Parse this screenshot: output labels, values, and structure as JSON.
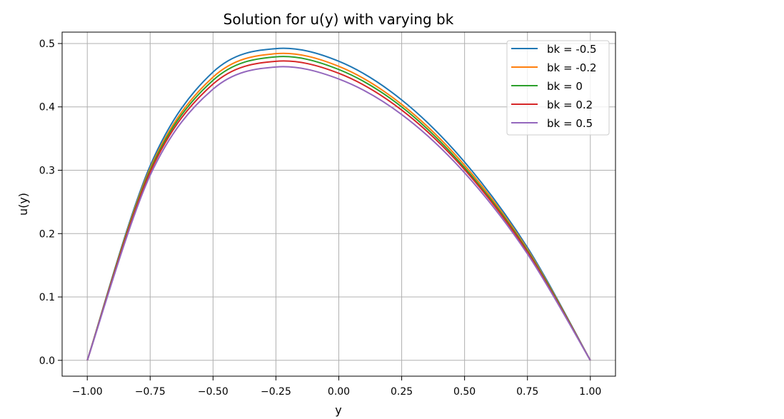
{
  "chart_data": {
    "type": "line",
    "title": "Solution for u(y) with varying bk",
    "xlabel": "y",
    "ylabel": "u(y)",
    "xlim": [
      -1.1,
      1.1
    ],
    "ylim": [
      -0.025,
      0.518
    ],
    "x_ticks": [
      -1.0,
      -0.75,
      -0.5,
      -0.25,
      0.0,
      0.25,
      0.5,
      0.75,
      1.0
    ],
    "x_tick_labels": [
      "−1.00",
      "−0.75",
      "−0.50",
      "−0.25",
      "0.00",
      "0.25",
      "0.50",
      "0.75",
      "1.00"
    ],
    "y_ticks": [
      0.0,
      0.1,
      0.2,
      0.3,
      0.4,
      0.5
    ],
    "y_tick_labels": [
      "0.0",
      "0.1",
      "0.2",
      "0.3",
      "0.4",
      "0.5"
    ],
    "grid": true,
    "legend_position": "upper right",
    "x": [
      -1.0,
      -0.75,
      -0.5,
      -0.25,
      0.0,
      0.25,
      0.5,
      0.75,
      1.0
    ],
    "series": [
      {
        "name": "bk = -0.5",
        "color": "#1f77b4",
        "values": [
          0.0,
          0.307,
          0.455,
          0.492,
          0.472,
          0.411,
          0.313,
          0.178,
          0.0
        ]
      },
      {
        "name": "bk = -0.2",
        "color": "#ff7f0e",
        "values": [
          0.0,
          0.303,
          0.447,
          0.484,
          0.464,
          0.404,
          0.308,
          0.175,
          0.0
        ]
      },
      {
        "name": "bk = 0",
        "color": "#2ca02c",
        "values": [
          0.0,
          0.3,
          0.442,
          0.479,
          0.459,
          0.4,
          0.304,
          0.173,
          0.0
        ]
      },
      {
        "name": "bk = 0.2",
        "color": "#d62728",
        "values": [
          0.0,
          0.297,
          0.436,
          0.472,
          0.453,
          0.395,
          0.301,
          0.171,
          0.0
        ]
      },
      {
        "name": "bk = 0.5",
        "color": "#9467bd",
        "values": [
          0.0,
          0.292,
          0.428,
          0.463,
          0.444,
          0.388,
          0.296,
          0.168,
          0.0
        ]
      }
    ]
  }
}
